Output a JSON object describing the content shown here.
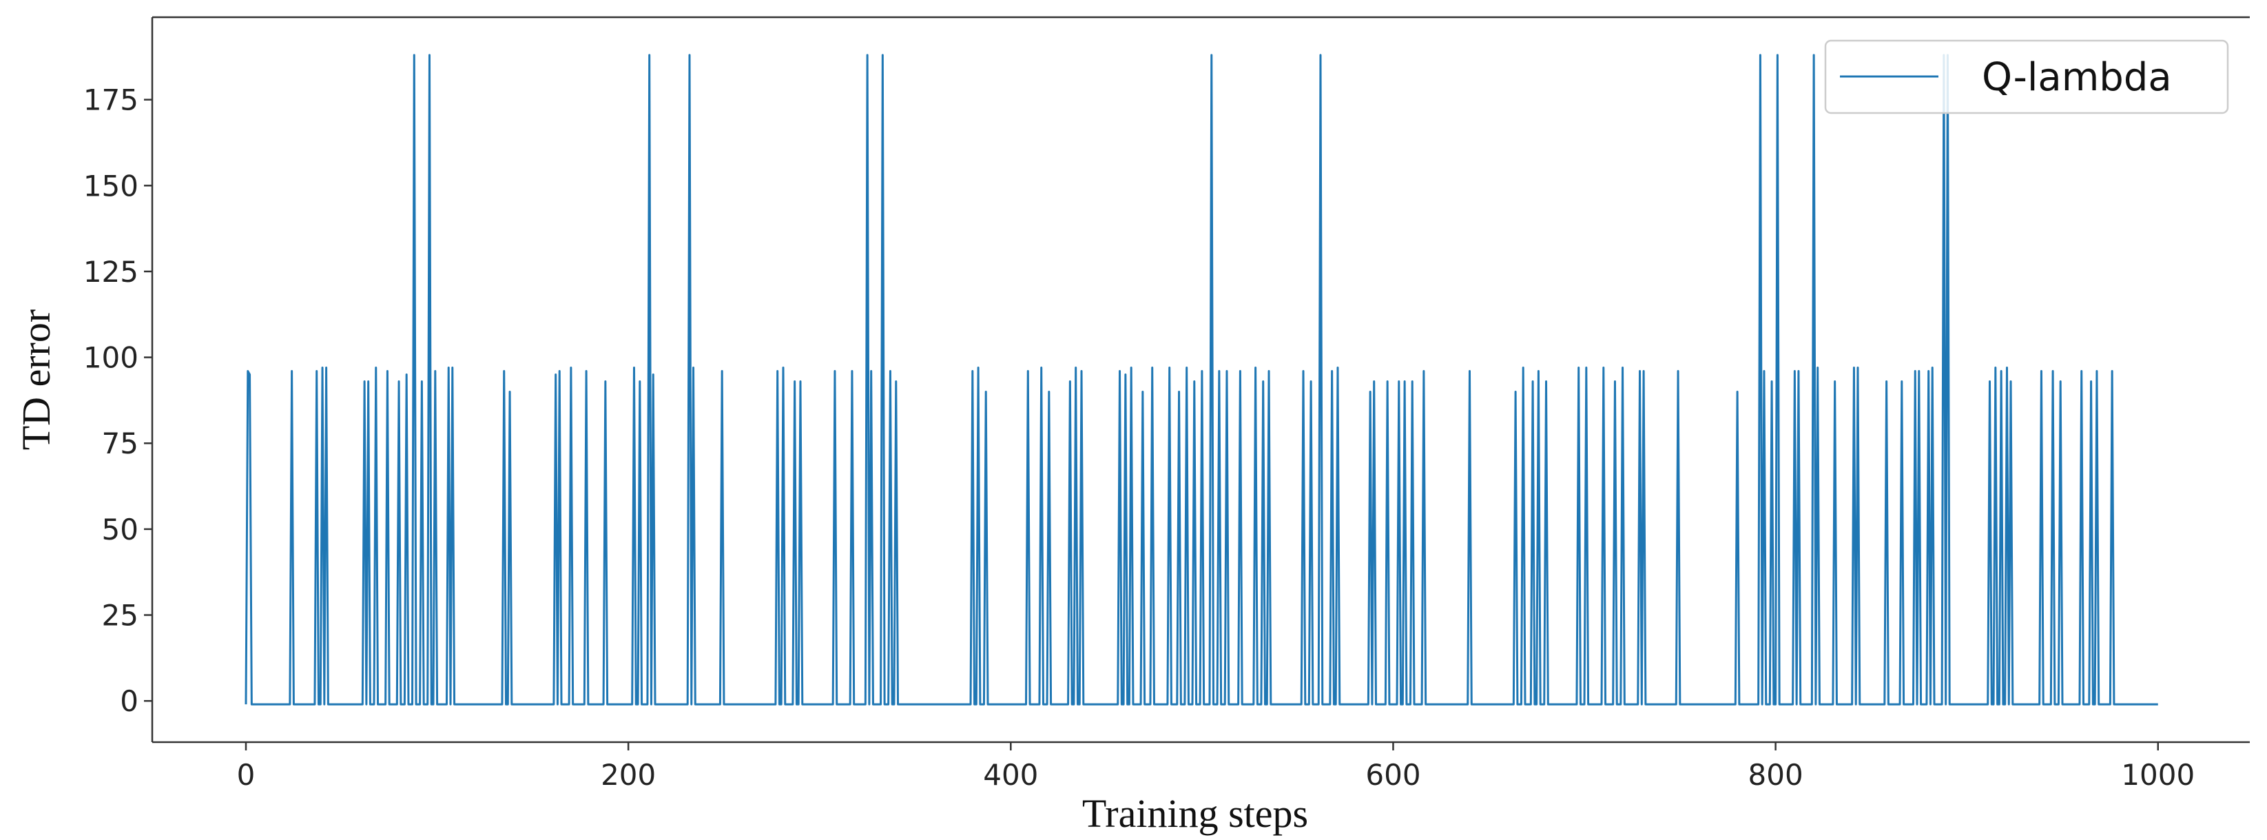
{
  "chart_data": {
    "type": "line",
    "xlabel": "Training steps",
    "ylabel": "TD error",
    "xlim": [
      -49,
      1048
    ],
    "ylim": [
      -12,
      199
    ],
    "xticks": [
      0,
      200,
      400,
      600,
      800,
      1000
    ],
    "yticks": [
      0,
      25,
      50,
      75,
      100,
      125,
      150,
      175
    ],
    "legend": "upper right",
    "x": [
      0,
      1,
      2,
      3,
      23,
      24,
      25,
      36,
      37,
      38,
      39,
      40,
      41,
      42,
      43,
      61,
      62,
      63,
      64,
      65,
      67,
      68,
      69,
      73,
      74,
      75,
      79,
      80,
      81,
      83,
      84,
      85,
      87,
      88,
      89,
      91,
      92,
      93,
      95,
      96,
      97,
      98,
      99,
      100,
      105,
      106,
      107,
      108,
      109,
      134,
      135,
      136,
      137,
      138,
      139,
      161,
      162,
      163,
      164,
      165,
      169,
      170,
      171,
      177,
      178,
      179,
      187,
      188,
      189,
      202,
      203,
      204,
      205,
      206,
      207,
      210,
      211,
      212,
      213,
      214,
      231,
      232,
      233,
      234,
      235,
      248,
      249,
      250,
      277,
      278,
      279,
      280,
      281,
      282,
      286,
      287,
      288,
      289,
      290,
      291,
      307,
      308,
      309,
      316,
      317,
      318,
      324,
      325,
      326,
      327,
      328,
      332,
      333,
      334,
      336,
      337,
      338,
      339,
      340,
      341,
      379,
      380,
      381,
      382,
      383,
      384,
      386,
      387,
      388,
      408,
      409,
      410,
      415,
      416,
      417,
      419,
      420,
      421,
      430,
      431,
      432,
      433,
      434,
      435,
      436,
      437,
      438,
      456,
      457,
      458,
      459,
      460,
      461,
      462,
      463,
      464,
      468,
      469,
      470,
      473,
      474,
      475,
      482,
      483,
      484,
      487,
      488,
      489,
      491,
      492,
      493,
      495,
      496,
      497,
      499,
      500,
      501,
      504,
      505,
      506,
      508,
      509,
      510,
      512,
      513,
      514,
      519,
      520,
      521,
      527,
      528,
      529,
      531,
      532,
      533,
      534,
      535,
      536,
      552,
      553,
      554,
      556,
      557,
      558,
      561,
      562,
      563,
      567,
      568,
      569,
      570,
      571,
      572,
      587,
      588,
      589,
      590,
      591,
      596,
      597,
      598,
      602,
      603,
      604,
      605,
      606,
      607,
      609,
      610,
      611,
      615,
      616,
      617,
      639,
      640,
      641,
      663,
      664,
      665,
      667,
      668,
      669,
      672,
      673,
      674,
      675,
      676,
      677,
      679,
      680,
      681,
      696,
      697,
      698,
      700,
      701,
      702,
      709,
      710,
      711,
      715,
      716,
      717,
      719,
      720,
      721,
      728,
      729,
      730,
      731,
      732,
      748,
      749,
      750,
      779,
      780,
      781,
      791,
      792,
      793,
      794,
      795,
      797,
      798,
      799,
      800,
      801,
      802,
      809,
      810,
      811,
      812,
      813,
      819,
      820,
      821,
      822,
      823,
      830,
      831,
      832,
      840,
      841,
      842,
      843,
      844,
      857,
      858,
      859,
      865,
      866,
      867,
      872,
      873,
      874,
      875,
      876,
      879,
      880,
      881,
      882,
      883,
      887,
      888,
      889,
      890,
      891,
      911,
      912,
      913,
      914,
      915,
      916,
      917,
      918,
      919,
      920,
      921,
      922,
      923,
      924,
      938,
      939,
      940,
      944,
      945,
      946,
      948,
      949,
      950,
      959,
      960,
      961,
      964,
      965,
      966,
      967,
      968,
      969,
      975,
      976,
      977,
      1000
    ],
    "series": [
      {
        "name": "Q-lambda",
        "color": "#1f77b4",
        "values": [
          -1,
          96,
          95,
          -1,
          -1,
          96,
          -1,
          -1,
          96,
          -1,
          -1,
          97,
          -1,
          97,
          -1,
          -1,
          93,
          -1,
          93,
          -1,
          -1,
          97,
          -1,
          -1,
          96,
          -1,
          -1,
          93,
          -1,
          -1,
          95,
          -1,
          -1,
          188,
          -1,
          -1,
          93,
          -1,
          -1,
          188,
          -1,
          -1,
          96,
          -1,
          -1,
          97,
          -1,
          97,
          -1,
          -1,
          96,
          -1,
          -1,
          90,
          -1,
          -1,
          95,
          -1,
          96,
          -1,
          -1,
          97,
          -1,
          -1,
          96,
          -1,
          -1,
          93,
          -1,
          -1,
          97,
          -1,
          -1,
          93,
          -1,
          -1,
          188,
          -1,
          95,
          -1,
          -1,
          188,
          -1,
          97,
          -1,
          -1,
          96,
          -1,
          -1,
          96,
          -1,
          -1,
          97,
          -1,
          -1,
          93,
          -1,
          -1,
          93,
          -1,
          -1,
          96,
          -1,
          -1,
          96,
          -1,
          -1,
          188,
          -1,
          96,
          -1,
          -1,
          188,
          -1,
          -1,
          96,
          -1,
          -1,
          93,
          -1,
          -1,
          96,
          -1,
          -1,
          97,
          -1,
          -1,
          90,
          -1,
          -1,
          96,
          -1,
          -1,
          97,
          -1,
          -1,
          90,
          -1,
          -1,
          93,
          -1,
          -1,
          97,
          -1,
          -1,
          96,
          -1,
          -1,
          96,
          -1,
          -1,
          95,
          -1,
          -1,
          97,
          -1,
          -1,
          90,
          -1,
          -1,
          97,
          -1,
          -1,
          97,
          -1,
          -1,
          90,
          -1,
          -1,
          97,
          -1,
          -1,
          93,
          -1,
          -1,
          96,
          -1,
          -1,
          188,
          -1,
          -1,
          96,
          -1,
          -1,
          96,
          -1,
          -1,
          96,
          -1,
          -1,
          97,
          -1,
          -1,
          93,
          -1,
          -1,
          96,
          -1,
          -1,
          96,
          -1,
          -1,
          93,
          -1,
          -1,
          188,
          -1,
          -1,
          96,
          -1,
          -1,
          97,
          -1,
          -1,
          90,
          -1,
          93,
          -1,
          -1,
          93,
          -1,
          -1,
          93,
          -1,
          -1,
          93,
          -1,
          -1,
          93,
          -1,
          -1,
          96,
          -1,
          -1,
          96,
          -1,
          -1,
          90,
          -1,
          -1,
          97,
          -1,
          -1,
          93,
          -1,
          -1,
          96,
          -1,
          -1,
          93,
          -1,
          -1,
          97,
          -1,
          -1,
          97,
          -1,
          -1,
          97,
          -1,
          -1,
          93,
          -1,
          -1,
          97,
          -1,
          -1,
          96,
          -1,
          96,
          -1,
          -1,
          96,
          -1,
          -1,
          90,
          -1,
          -1,
          188,
          -1,
          96,
          -1,
          -1,
          93,
          -1,
          -1,
          188,
          -1,
          -1,
          96,
          -1,
          96,
          -1,
          -1,
          188,
          -1,
          97,
          -1,
          -1,
          93,
          -1,
          -1,
          97,
          -1,
          97,
          -1,
          -1,
          93,
          -1,
          -1,
          93,
          -1,
          -1,
          96,
          -1,
          96,
          -1,
          -1,
          96,
          -1,
          97,
          -1,
          -1,
          188,
          -1,
          188,
          -1,
          -1,
          93,
          -1,
          -1,
          97,
          -1,
          -1,
          96,
          -1,
          -1,
          97,
          -1,
          93,
          -1,
          -1,
          96,
          -1,
          -1,
          96,
          -1,
          -1,
          93,
          -1,
          -1,
          96,
          -1,
          -1,
          93,
          -1,
          -1,
          96,
          -1,
          -1,
          96,
          -1,
          -1
        ]
      }
    ]
  }
}
